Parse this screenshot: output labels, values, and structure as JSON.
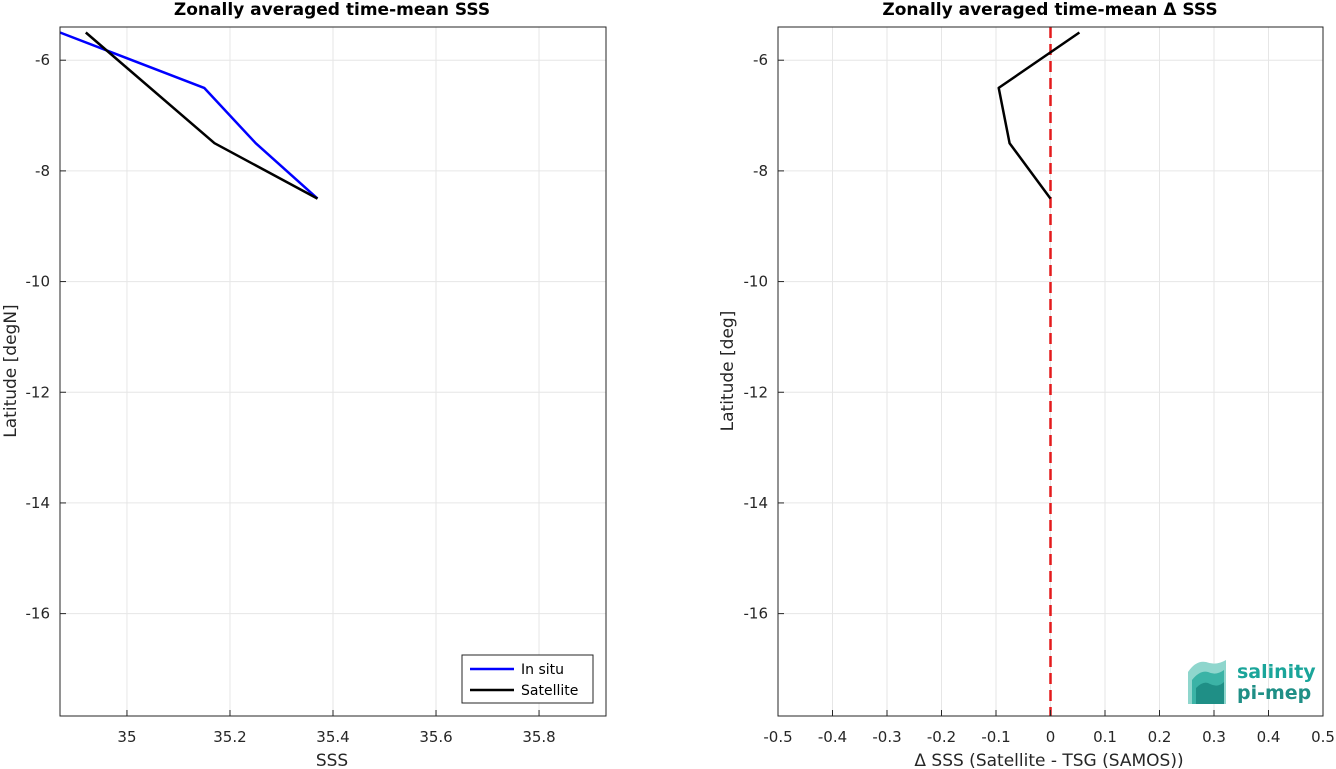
{
  "chart_data": [
    {
      "type": "line",
      "title": "Zonally averaged time-mean SSS",
      "xlabel": "SSS",
      "ylabel": "Latitude [degN]",
      "xlim": [
        34.87,
        35.93
      ],
      "ylim": [
        -17.85,
        -5.4
      ],
      "xticks": [
        35,
        35.2,
        35.4,
        35.6,
        35.8
      ],
      "xtick_labels": [
        "35",
        "35.2",
        "35.4",
        "35.6",
        "35.8"
      ],
      "yticks": [
        -6,
        -8,
        -10,
        -12,
        -14,
        -16
      ],
      "ytick_labels": [
        "-6",
        "-8",
        "-10",
        "-12",
        "-14",
        "-16"
      ],
      "grid": true,
      "legend_position": "bottom-right",
      "series": [
        {
          "name": "In situ",
          "color": "#0000ff",
          "x": [
            34.87,
            35.15,
            35.25,
            35.37
          ],
          "y": [
            -5.5,
            -6.5,
            -7.5,
            -8.5
          ]
        },
        {
          "name": "Satellite",
          "color": "#000000",
          "x": [
            34.92,
            35.17,
            35.37
          ],
          "y": [
            -5.5,
            -7.5,
            -8.5
          ]
        }
      ]
    },
    {
      "type": "line",
      "title": "Zonally averaged time-mean Δ SSS",
      "xlabel": "Δ SSS (Satellite - TSG (SAMOS))",
      "ylabel": "Latitude [deg]",
      "xlim": [
        -0.5,
        0.5
      ],
      "ylim": [
        -17.85,
        -5.4
      ],
      "xticks": [
        -0.5,
        -0.4,
        -0.3,
        -0.2,
        -0.1,
        0,
        0.1,
        0.2,
        0.3,
        0.4,
        0.5
      ],
      "xtick_labels": [
        "-0.5",
        "-0.4",
        "-0.3",
        "-0.2",
        "-0.1",
        "0",
        "0.1",
        "0.2",
        "0.3",
        "0.4",
        "0.5"
      ],
      "yticks": [
        -6,
        -8,
        -10,
        -12,
        -14,
        -16
      ],
      "ytick_labels": [
        "-6",
        "-8",
        "-10",
        "-12",
        "-14",
        "-16"
      ],
      "grid": true,
      "reference_line": {
        "x": 0,
        "color": "#e41a1c",
        "style": "dashed"
      },
      "series": [
        {
          "color": "#000000",
          "x": [
            0.053,
            -0.095,
            -0.075,
            0.0
          ],
          "y": [
            -5.5,
            -6.5,
            -7.5,
            -8.5
          ]
        }
      ]
    }
  ],
  "logo": {
    "line1": "salinity",
    "line2": "pi-mep"
  }
}
